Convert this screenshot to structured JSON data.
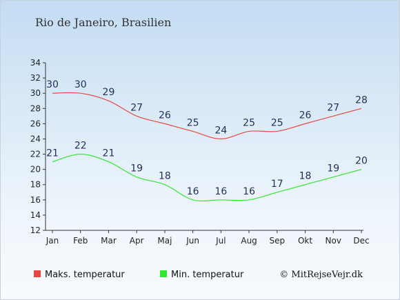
{
  "chart_data": {
    "type": "line",
    "title": "Rio de Janeiro, Brasilien",
    "categories": [
      "Jan",
      "Feb",
      "Mar",
      "Apr",
      "Maj",
      "Jun",
      "Jul",
      "Aug",
      "Sep",
      "Okt",
      "Nov",
      "Dec"
    ],
    "series": [
      {
        "name": "Maks. temperatur",
        "color": "#e8473f",
        "values": [
          30,
          30,
          29,
          27,
          26,
          25,
          24,
          25,
          25,
          26,
          27,
          28
        ]
      },
      {
        "name": "Min. temperatur",
        "color": "#33e533",
        "values": [
          21,
          22,
          21,
          19,
          18,
          16,
          16,
          16,
          17,
          18,
          19,
          20
        ]
      }
    ],
    "yticks": [
      12,
      14,
      16,
      18,
      20,
      22,
      24,
      26,
      28,
      30,
      32,
      34
    ],
    "ylim": [
      12,
      34
    ],
    "grid": false,
    "legend": "bottom",
    "credit": "© MitRejseVejr.dk"
  }
}
